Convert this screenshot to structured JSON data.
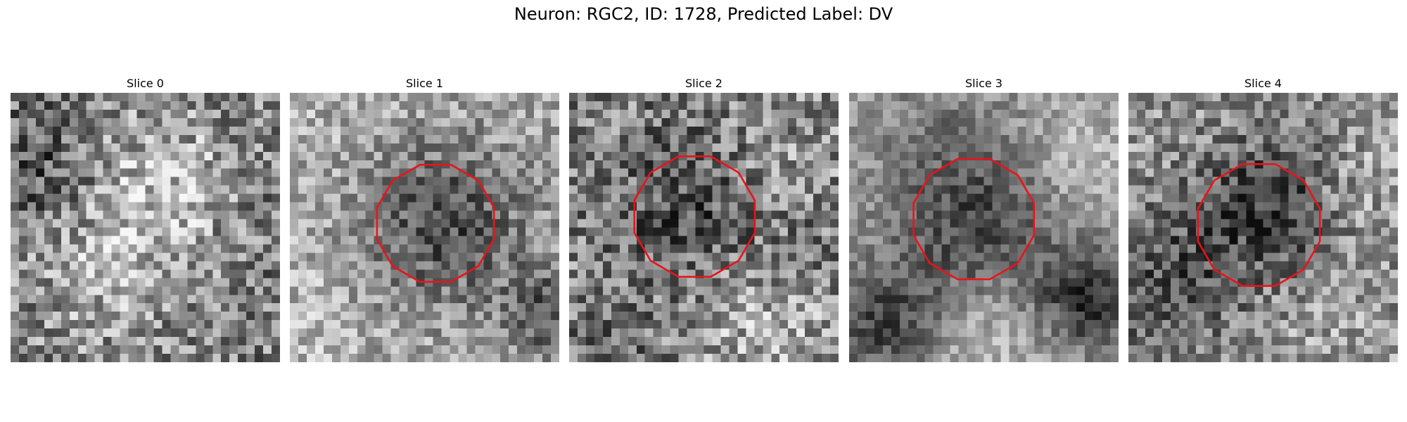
{
  "figure": {
    "title": "Neuron: RGC2, ID: 1728, Predicted Label: DV"
  },
  "colors": {
    "contour": "#e8141b",
    "background": "#ffffff",
    "colormap": "grayscale"
  },
  "slices": [
    {
      "title": "Slice 0",
      "has_contour": false
    },
    {
      "title": "Slice 1",
      "has_contour": true
    },
    {
      "title": "Slice 2",
      "has_contour": true
    },
    {
      "title": "Slice 3",
      "has_contour": true
    },
    {
      "title": "Slice 4",
      "has_contour": true
    }
  ]
}
